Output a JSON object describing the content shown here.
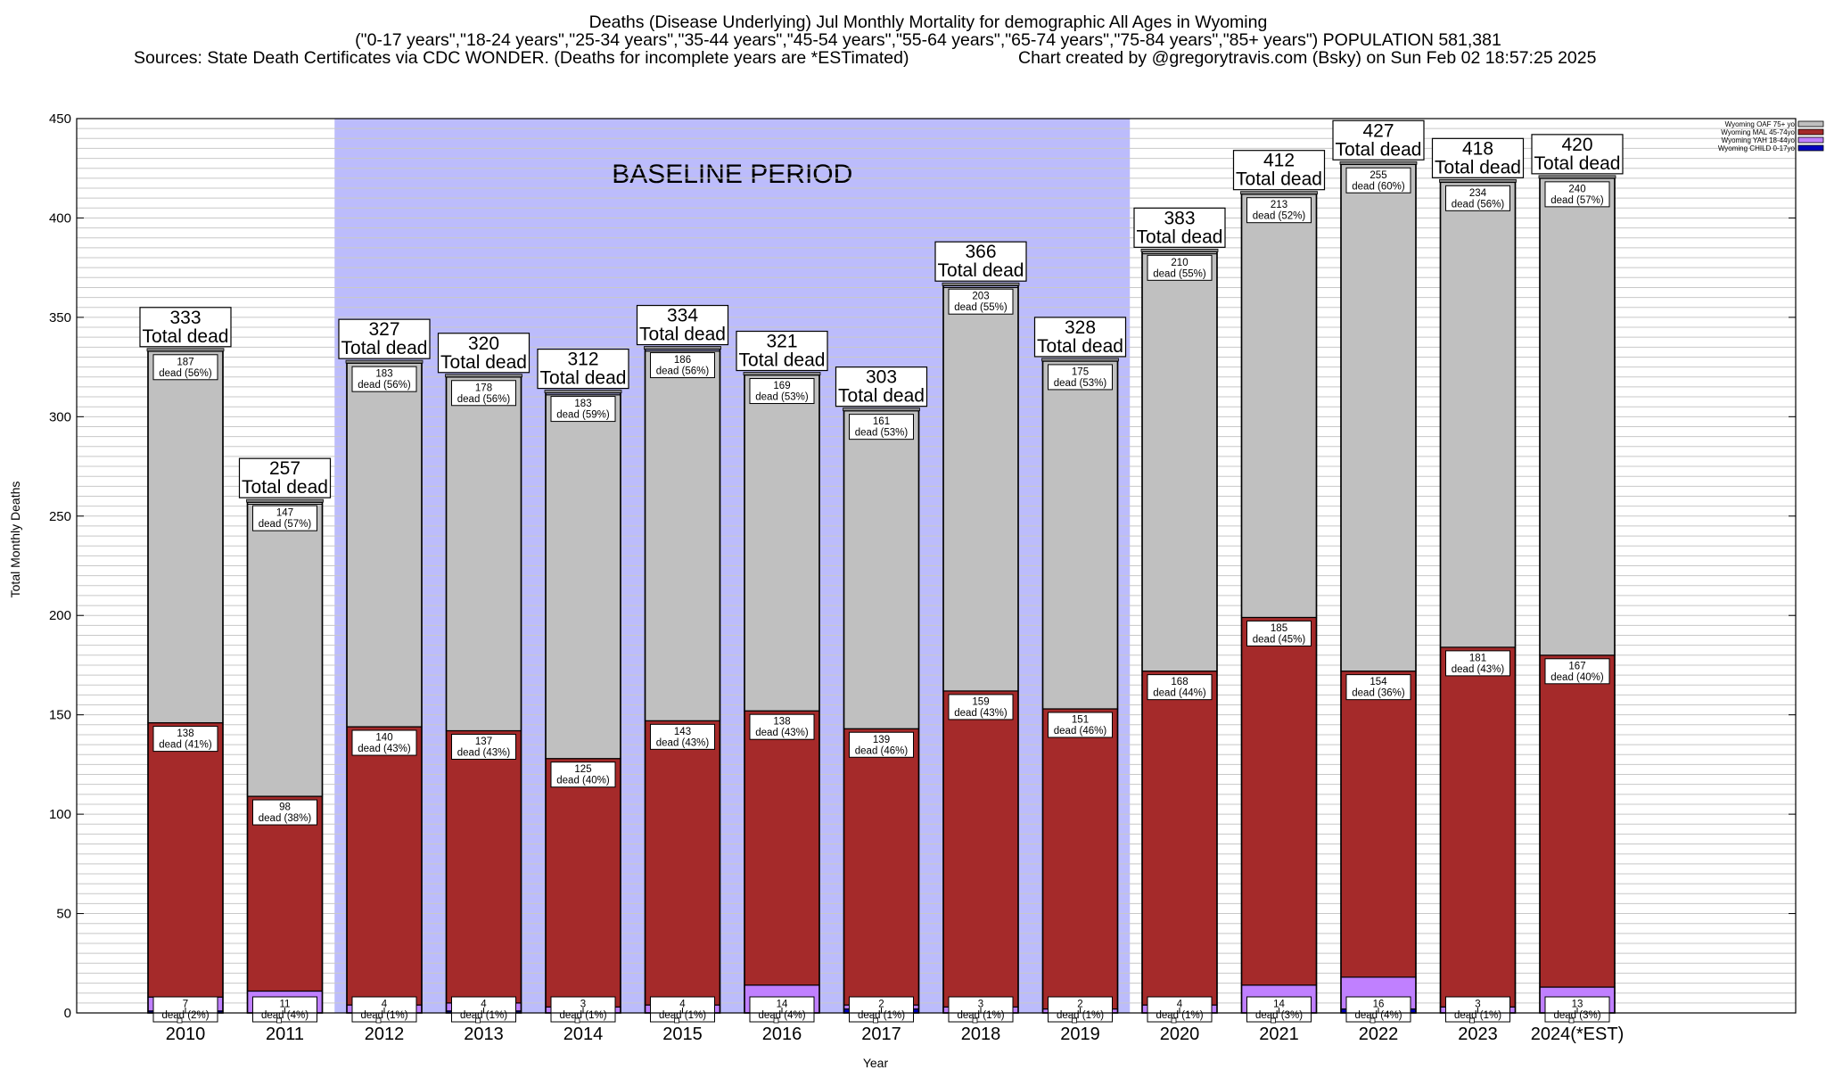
{
  "header": {
    "line1": "Deaths (Disease Underlying) Jul Monthly Mortality for demographic All Ages in Wyoming",
    "line2": "(\"0-17 years\",\"18-24 years\",\"25-34 years\",\"35-44 years\",\"45-54 years\",\"55-64 years\",\"65-74 years\",\"75-84 years\",\"85+ years\") POPULATION 581,381",
    "line3_left": "Sources: State Death Certificates via CDC WONDER. (Deaths for incomplete years are *ESTimated)",
    "line3_right": "Chart created by @gregorytravis.com (Bsky) on Sun Feb 02 18:57:25 2025"
  },
  "colors": {
    "oaf": "#c0c0c0",
    "mal": "#a52a2a",
    "yah": "#c080ff",
    "child": "#0000c0",
    "baseline": "#bcbcfc",
    "grid": "#c8c8c8"
  },
  "chart_data": {
    "type": "bar",
    "stacked": true,
    "categories": [
      "2010",
      "2011",
      "2012",
      "2013",
      "2014",
      "2015",
      "2016",
      "2017",
      "2018",
      "2019",
      "2020",
      "2021",
      "2022",
      "2023",
      "2024(*EST)"
    ],
    "series": [
      {
        "name": "Wyoming CHILD 0-17yo",
        "color": "#0000c0",
        "values": [
          1,
          0,
          0,
          1,
          0,
          0,
          0,
          2,
          0,
          0,
          0,
          0,
          2,
          0,
          0
        ]
      },
      {
        "name": "Wyoming YAH 18-44yo",
        "color": "#c080ff",
        "values": [
          7,
          11,
          4,
          4,
          3,
          4,
          14,
          2,
          3,
          2,
          4,
          14,
          16,
          3,
          13
        ]
      },
      {
        "name": "Wyoming MAL 45-74yo",
        "color": "#a52a2a",
        "values": [
          138,
          98,
          140,
          137,
          125,
          143,
          138,
          139,
          159,
          151,
          168,
          185,
          154,
          181,
          167
        ]
      },
      {
        "name": "Wyoming OAF 75+ yo",
        "color": "#c0c0c0",
        "values": [
          187,
          147,
          183,
          178,
          183,
          186,
          169,
          161,
          203,
          175,
          210,
          213,
          255,
          234,
          240
        ]
      }
    ],
    "legend_order": [
      "Wyoming OAF 75+ yo",
      "Wyoming MAL 45-74yo",
      "Wyoming YAH 18-44yo",
      "Wyoming CHILD 0-17yo"
    ],
    "totals": [
      333,
      257,
      327,
      320,
      312,
      334,
      321,
      303,
      366,
      328,
      383,
      412,
      427,
      418,
      420
    ],
    "segment_labels": {
      "oaf": [
        "187|dead (56%)",
        "147|dead (57%)",
        "183|dead (56%)",
        "178|dead (56%)",
        "183|dead (59%)",
        "186|dead (56%)",
        "169|dead (53%)",
        "161|dead (53%)",
        "203|dead (55%)",
        "175|dead (53%)",
        "210|dead (55%)",
        "213|dead (52%)",
        "255|dead (60%)",
        "234|dead (56%)",
        "240|dead (57%)"
      ],
      "mal": [
        "138|dead (41%)",
        "98|dead (38%)",
        "140|dead (43%)",
        "137|dead (43%)",
        "125|dead (40%)",
        "143|dead (43%)",
        "138|dead (43%)",
        "139|dead (46%)",
        "159|dead (43%)",
        "151|dead (46%)",
        "168|dead (44%)",
        "185|dead (45%)",
        "154|dead (36%)",
        "181|dead (43%)",
        "167|dead (40%)"
      ],
      "yah": [
        "7|dead (2%)",
        "11|dead (4%)",
        "4|dead (1%)",
        "4|dead (1%)",
        "3|dead (1%)",
        "4|dead (1%)",
        "14|dead (4%)",
        "2|dead (1%)",
        "3|dead (1%)",
        "2|dead (1%)",
        "4|dead (1%)",
        "14|dead (3%)",
        "16|dead (4%)",
        "3|dead (1%)",
        "13|dead (3%)"
      ]
    },
    "total_suffix": "Total dead",
    "baseline": {
      "label": "BASELINE PERIOD",
      "from": "2012",
      "to": "2019"
    },
    "ylabel": "Total Monthly Deaths",
    "xlabel": "Year",
    "ylim": [
      0,
      450
    ],
    "yticks": [
      0,
      50,
      100,
      150,
      200,
      250,
      300,
      350,
      400,
      450
    ],
    "grid": true,
    "legend_position": "top-right"
  }
}
